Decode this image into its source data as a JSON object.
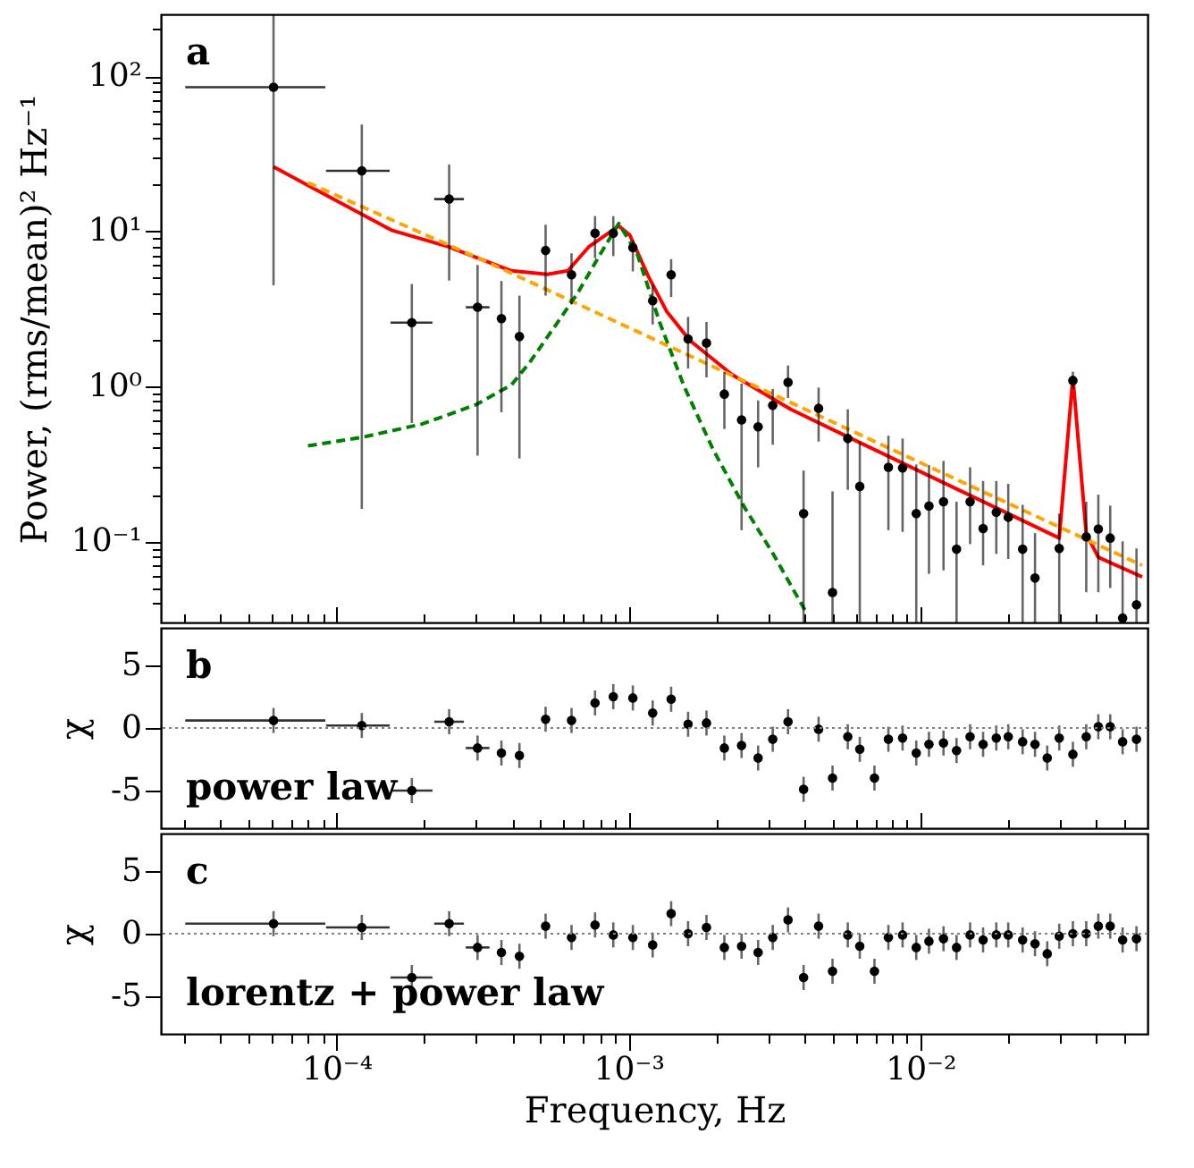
{
  "chart_data": [
    {
      "type": "scatter",
      "ylabel": "Power, (rms/mean)² Hz⁻¹",
      "log": "xy",
      "tick_labels": "y",
      "annotations": [
        "a"
      ],
      "xlim": [
        2.5e-05,
        0.06
      ],
      "ylim": [
        0.03,
        250
      ],
      "xticks": [
        {
          "value": 3e-05,
          "label": null
        },
        {
          "value": 4e-05,
          "label": null
        },
        {
          "value": 5e-05,
          "label": null
        },
        {
          "value": 6e-05,
          "label": null
        },
        {
          "value": 7e-05,
          "label": null
        },
        {
          "value": 8e-05,
          "label": null
        },
        {
          "value": 9e-05,
          "label": null
        },
        {
          "value": 0.0001,
          "label": null
        },
        {
          "value": 0.0002,
          "label": null
        },
        {
          "value": 0.0003,
          "label": null
        },
        {
          "value": 0.0004,
          "label": null
        },
        {
          "value": 0.0005,
          "label": null
        },
        {
          "value": 0.0006,
          "label": null
        },
        {
          "value": 0.0007,
          "label": null
        },
        {
          "value": 0.0008,
          "label": null
        },
        {
          "value": 0.0009,
          "label": null
        },
        {
          "value": 0.001,
          "label": null
        },
        {
          "value": 0.002,
          "label": null
        },
        {
          "value": 0.003,
          "label": null
        },
        {
          "value": 0.004,
          "label": null
        },
        {
          "value": 0.005,
          "label": null
        },
        {
          "value": 0.006,
          "label": null
        },
        {
          "value": 0.007,
          "label": null
        },
        {
          "value": 0.008,
          "label": null
        },
        {
          "value": 0.009,
          "label": null
        },
        {
          "value": 0.01,
          "label": null
        },
        {
          "value": 0.02,
          "label": null
        },
        {
          "value": 0.03,
          "label": null
        },
        {
          "value": 0.04,
          "label": null
        },
        {
          "value": 0.05,
          "label": null
        }
      ],
      "yticks": [
        {
          "value": 0.04,
          "label": null
        },
        {
          "value": 0.05,
          "label": null
        },
        {
          "value": 0.06,
          "label": null
        },
        {
          "value": 0.07,
          "label": null
        },
        {
          "value": 0.08,
          "label": null
        },
        {
          "value": 0.09,
          "label": null
        },
        {
          "value": 0.1,
          "label": "10⁻¹"
        },
        {
          "value": 0.2,
          "label": null
        },
        {
          "value": 0.3,
          "label": null
        },
        {
          "value": 0.4,
          "label": null
        },
        {
          "value": 0.5,
          "label": null
        },
        {
          "value": 0.6,
          "label": null
        },
        {
          "value": 0.7,
          "label": null
        },
        {
          "value": 0.8,
          "label": null
        },
        {
          "value": 0.9,
          "label": null
        },
        {
          "value": 1,
          "label": "10⁰"
        },
        {
          "value": 2,
          "label": null
        },
        {
          "value": 3,
          "label": null
        },
        {
          "value": 4,
          "label": null
        },
        {
          "value": 5,
          "label": null
        },
        {
          "value": 6,
          "label": null
        },
        {
          "value": 7,
          "label": null
        },
        {
          "value": 8,
          "label": null
        },
        {
          "value": 9,
          "label": null
        },
        {
          "value": 10,
          "label": "10¹"
        },
        {
          "value": 20,
          "label": null
        },
        {
          "value": 30,
          "label": null
        },
        {
          "value": 40,
          "label": null
        },
        {
          "value": 50,
          "label": null
        },
        {
          "value": 60,
          "label": null
        },
        {
          "value": 70,
          "label": null
        },
        {
          "value": 80,
          "label": null
        },
        {
          "value": 90,
          "label": null
        },
        {
          "value": 100,
          "label": "10²"
        },
        {
          "value": 200,
          "label": null
        }
      ],
      "series": [
        {
          "type": "line",
          "color": "#ff0000",
          "x": [
            6.08e-05,
            9.3e-05,
            0.000155,
            0.000243,
            0.000397,
            0.000527,
            0.00062,
            0.00073,
            0.000926,
            0.00101,
            0.00117,
            0.00135,
            0.00162,
            0.00226,
            0.0036,
            0.0058,
            0.0299,
            0.0333,
            0.037,
            0.0407,
            0.0575
          ],
          "values": [
            26,
            16.9,
            10.1,
            7.9,
            5.55,
            5.27,
            5.55,
            7.9,
            10.8,
            9.44,
            5.1,
            3.05,
            1.98,
            1.19,
            0.71,
            0.46,
            0.105,
            1.14,
            0.112,
            0.079,
            0.059
          ]
        },
        {
          "type": "line",
          "color": "#ffa500",
          "line_style": "dashed",
          "x": [
            7.98e-05,
            0.000345,
            0.0575
          ],
          "values": [
            20.5,
            6.05,
            0.07
          ]
        },
        {
          "type": "line",
          "color": "#008000",
          "line_style": "dashed",
          "x": [
            7.98e-05,
            0.000123,
            0.000196,
            0.0003,
            0.000397,
            0.000457,
            0.000553,
            0.000667,
            0.000803,
            0.000926,
            0.00107,
            0.00128,
            0.00155,
            0.00195,
            0.0025,
            0.00313,
            0.00405
          ],
          "values": [
            0.413,
            0.47,
            0.57,
            0.76,
            1.02,
            1.41,
            2.36,
            3.94,
            7.18,
            11.2,
            7.18,
            2.57,
            1.0,
            0.39,
            0.165,
            0.083,
            0.0352
          ]
        },
        {
          "type": "scatter",
          "marker": "circle",
          "color": "#000000",
          "x": [
            6.08e-05,
            0.000122,
            0.000181,
            0.000243,
            0.000304,
            0.000367,
            0.000423,
            0.00052,
            0.000638,
            0.000768,
            0.000887,
            0.001035,
            0.00121,
            0.0014,
            0.0016,
            0.00185,
            0.00213,
            0.00244,
            0.00278,
            0.00312,
            0.00352,
            0.00398,
            0.00448,
            0.005,
            0.00564,
            0.0062,
            0.00777,
            0.00869,
            0.00968,
            0.0107,
            0.012,
            0.0133,
            0.0148,
            0.0164,
            0.0182,
            0.02,
            0.0224,
            0.0247,
            0.0299,
            0.0333,
            0.037,
            0.0407,
            0.0447,
            0.0493,
            0.055
          ],
          "values": [
            84.8,
            24.5,
            2.57,
            16.1,
            3.23,
            2.73,
            2.09,
            7.5,
            5.23,
            9.7,
            9.7,
            7.83,
            3.56,
            5.23,
            2.02,
            1.9,
            0.89,
            0.607,
            0.547,
            0.753,
            1.06,
            0.151,
            0.72,
            0.0468,
            0.46,
            0.226,
            0.3,
            0.297,
            0.151,
            0.169,
            0.18,
            0.089,
            0.18,
            0.121,
            0.154,
            0.143,
            0.089,
            0.058,
            0.09,
            1.09,
            0.107,
            0.12,
            0.105,
            0.032,
            0.039
          ],
          "errors": [
            [
              4.48,
              250
            ],
            [
              0.162,
              48.7
            ],
            [
              0.58,
              4.56
            ],
            [
              4.8,
              26.9
            ],
            [
              0.357,
              6.05
            ],
            [
              0.68,
              4.77
            ],
            [
              0.342,
              3.84
            ],
            [
              3.84,
              11.0
            ],
            [
              3.37,
              7.2
            ],
            [
              6.7,
              12.5
            ],
            [
              6.9,
              12.5
            ],
            [
              5.5,
              8.7
            ],
            [
              2.5,
              4.5
            ],
            [
              3.76,
              6.6
            ],
            [
              1.3,
              2.8
            ],
            [
              1.14,
              2.6
            ],
            [
              0.53,
              1.24
            ],
            [
              0.118,
              1.04
            ],
            [
              0.3,
              0.81
            ],
            [
              0.42,
              0.96
            ],
            [
              0.84,
              1.36
            ],
            [
              0.03,
              0.286
            ],
            [
              0.44,
              0.98
            ],
            [
              0.03,
              0.21
            ],
            [
              0.215,
              0.71
            ],
            [
              0.03,
              0.44
            ],
            [
              0.118,
              0.48
            ],
            [
              0.115,
              0.46
            ],
            [
              0.03,
              0.313
            ],
            [
              0.0617,
              0.31
            ],
            [
              0.065,
              0.33
            ],
            [
              0.03,
              0.18
            ],
            [
              0.096,
              0.3
            ],
            [
              0.07,
              0.245
            ],
            [
              0.083,
              0.245
            ],
            [
              0.077,
              0.235
            ],
            [
              0.03,
              0.172
            ],
            [
              0.03,
              0.113
            ],
            [
              0.03,
              0.151
            ],
            [
              0.96,
              1.24
            ],
            [
              0.047,
              0.18
            ],
            [
              0.047,
              0.2
            ],
            [
              0.05,
              0.17
            ],
            [
              0.03,
              0.1
            ],
            [
              0.03,
              0.09
            ]
          ],
          "xerrors": [
            [
              3.03e-05,
              9.15e-05
            ],
            [
              9.2e-05,
              0.000152
            ],
            [
              0.000153,
              0.000213
            ],
            [
              0.000216,
              0.000273
            ],
            [
              0.000277,
              0.000334
            ],
            null,
            null,
            null,
            null,
            null,
            null,
            null,
            null,
            null,
            null,
            null,
            null,
            null,
            null,
            null,
            null,
            null,
            null,
            null,
            null,
            null,
            null,
            null,
            null,
            null,
            null,
            null,
            null,
            null,
            null,
            null,
            null,
            null,
            null,
            null,
            null,
            null,
            null,
            null,
            null
          ]
        }
      ]
    },
    {
      "type": "scatter",
      "ylabel": "χ",
      "log": "x",
      "tick_labels": "y",
      "annotations": [
        "b",
        "power law"
      ],
      "xlim": [
        2.5e-05,
        0.06
      ],
      "ylim": [
        -8,
        8
      ],
      "yticks": [
        -5,
        0,
        5
      ],
      "xticks": [
        {
          "value": 3e-05,
          "label": null
        },
        {
          "value": 4e-05,
          "label": null
        },
        {
          "value": 5e-05,
          "label": null
        },
        {
          "value": 6e-05,
          "label": null
        },
        {
          "value": 7e-05,
          "label": null
        },
        {
          "value": 8e-05,
          "label": null
        },
        {
          "value": 9e-05,
          "label": null
        },
        {
          "value": 0.0001,
          "label": null
        },
        {
          "value": 0.0002,
          "label": null
        },
        {
          "value": 0.0003,
          "label": null
        },
        {
          "value": 0.0004,
          "label": null
        },
        {
          "value": 0.0005,
          "label": null
        },
        {
          "value": 0.0006,
          "label": null
        },
        {
          "value": 0.0007,
          "label": null
        },
        {
          "value": 0.0008,
          "label": null
        },
        {
          "value": 0.0009,
          "label": null
        },
        {
          "value": 0.001,
          "label": null
        },
        {
          "value": 0.002,
          "label": null
        },
        {
          "value": 0.003,
          "label": null
        },
        {
          "value": 0.004,
          "label": null
        },
        {
          "value": 0.005,
          "label": null
        },
        {
          "value": 0.006,
          "label": null
        },
        {
          "value": 0.007,
          "label": null
        },
        {
          "value": 0.008,
          "label": null
        },
        {
          "value": 0.009,
          "label": null
        },
        {
          "value": 0.01,
          "label": null
        },
        {
          "value": 0.02,
          "label": null
        },
        {
          "value": 0.03,
          "label": null
        },
        {
          "value": 0.04,
          "label": null
        },
        {
          "value": 0.05,
          "label": null
        }
      ],
      "ref_lines": [
        {
          "axis": "y",
          "value": 0,
          "line_style": "dotted",
          "color": "#808080"
        }
      ],
      "x": [
        6.08e-05,
        0.000122,
        0.000181,
        0.000243,
        0.000304,
        0.000367,
        0.000423,
        0.00052,
        0.000638,
        0.000768,
        0.000887,
        0.001035,
        0.00121,
        0.0014,
        0.0016,
        0.00185,
        0.00213,
        0.00244,
        0.00278,
        0.00312,
        0.00352,
        0.00398,
        0.00448,
        0.005,
        0.00564,
        0.0062,
        0.00696,
        0.00777,
        0.00869,
        0.00968,
        0.0107,
        0.012,
        0.0133,
        0.0148,
        0.0164,
        0.0182,
        0.02,
        0.0224,
        0.0247,
        0.0272,
        0.0299,
        0.0333,
        0.037,
        0.0407,
        0.0447,
        0.0493,
        0.055
      ],
      "series": [
        {
          "type": "scatter",
          "marker": "circle",
          "color": "#000000",
          "values": [
            0.6,
            0.2,
            -5.0,
            0.5,
            -1.6,
            -2.0,
            -2.2,
            0.7,
            0.6,
            2.0,
            2.5,
            2.4,
            1.2,
            2.3,
            0.3,
            0.4,
            -1.6,
            -1.4,
            -2.4,
            -0.9,
            0.5,
            -4.9,
            -0.1,
            -4.0,
            -0.7,
            -1.7,
            -4.0,
            -0.9,
            -0.8,
            -2.0,
            -1.3,
            -1.2,
            -1.8,
            -0.7,
            -1.3,
            -0.8,
            -0.7,
            -1.1,
            -1.3,
            -2.4,
            -0.8,
            -2.1,
            -0.7,
            0.1,
            0.1,
            -1.1,
            -0.9
          ],
          "errors": [
            1,
            1,
            1,
            1,
            1,
            1,
            1,
            1,
            1,
            1,
            1,
            1,
            1,
            1,
            1,
            1,
            1,
            1,
            1,
            1,
            1,
            1,
            1,
            1,
            1,
            1,
            1,
            1,
            1,
            1,
            1,
            1,
            1,
            1,
            1,
            1,
            1,
            1,
            1,
            1,
            1,
            1,
            1,
            1,
            1,
            1,
            1
          ],
          "xerrors": [
            [
              3.03e-05,
              9.15e-05
            ],
            [
              9.2e-05,
              0.000152
            ],
            [
              0.000153,
              0.000213
            ],
            [
              0.000216,
              0.000273
            ],
            [
              0.000277,
              0.000334
            ],
            null,
            null,
            null,
            null,
            null,
            null,
            null,
            null,
            null,
            null,
            null,
            null,
            null,
            null,
            null,
            null,
            null,
            null,
            null,
            null,
            null,
            null,
            null,
            null,
            null,
            null,
            null,
            null,
            null,
            null,
            null,
            null,
            null,
            null,
            null,
            null,
            null,
            null,
            null,
            null,
            null,
            null
          ]
        }
      ]
    },
    {
      "type": "scatter",
      "xlabel": "Frequency, Hz",
      "ylabel": "χ",
      "log": "x",
      "annotations": [
        "c",
        "lorentz + power law"
      ],
      "xlim": [
        2.5e-05,
        0.06
      ],
      "ylim": [
        -8,
        8
      ],
      "yticks": [
        -5,
        0,
        5
      ],
      "xticks": [
        {
          "value": 3e-05,
          "label": null
        },
        {
          "value": 4e-05,
          "label": null
        },
        {
          "value": 5e-05,
          "label": null
        },
        {
          "value": 6e-05,
          "label": null
        },
        {
          "value": 7e-05,
          "label": null
        },
        {
          "value": 8e-05,
          "label": null
        },
        {
          "value": 9e-05,
          "label": null
        },
        {
          "value": 0.0001,
          "label": "10⁻⁴"
        },
        {
          "value": 0.0002,
          "label": null
        },
        {
          "value": 0.0003,
          "label": null
        },
        {
          "value": 0.0004,
          "label": null
        },
        {
          "value": 0.0005,
          "label": null
        },
        {
          "value": 0.0006,
          "label": null
        },
        {
          "value": 0.0007,
          "label": null
        },
        {
          "value": 0.0008,
          "label": null
        },
        {
          "value": 0.0009,
          "label": null
        },
        {
          "value": 0.001,
          "label": "10⁻³"
        },
        {
          "value": 0.002,
          "label": null
        },
        {
          "value": 0.003,
          "label": null
        },
        {
          "value": 0.004,
          "label": null
        },
        {
          "value": 0.005,
          "label": null
        },
        {
          "value": 0.006,
          "label": null
        },
        {
          "value": 0.007,
          "label": null
        },
        {
          "value": 0.008,
          "label": null
        },
        {
          "value": 0.009,
          "label": null
        },
        {
          "value": 0.01,
          "label": "10⁻²"
        },
        {
          "value": 0.02,
          "label": null
        },
        {
          "value": 0.03,
          "label": null
        },
        {
          "value": 0.04,
          "label": null
        },
        {
          "value": 0.05,
          "label": null
        }
      ],
      "ref_lines": [
        {
          "axis": "y",
          "value": 0,
          "line_style": "dotted",
          "color": "#808080"
        }
      ],
      "x": [
        6.08e-05,
        0.000122,
        0.000181,
        0.000243,
        0.000304,
        0.000367,
        0.000423,
        0.00052,
        0.000638,
        0.000768,
        0.000887,
        0.001035,
        0.00121,
        0.0014,
        0.0016,
        0.00185,
        0.00213,
        0.00244,
        0.00278,
        0.00312,
        0.00352,
        0.00398,
        0.00448,
        0.005,
        0.00564,
        0.0062,
        0.00696,
        0.00777,
        0.00869,
        0.00968,
        0.0107,
        0.012,
        0.0133,
        0.0148,
        0.0164,
        0.0182,
        0.02,
        0.0224,
        0.0247,
        0.0272,
        0.0299,
        0.0333,
        0.037,
        0.0407,
        0.0447,
        0.0493,
        0.055
      ],
      "series": [
        {
          "type": "scatter",
          "marker": "circle",
          "color": "#000000",
          "values": [
            0.8,
            0.5,
            -3.5,
            0.8,
            -1.1,
            -1.5,
            -1.8,
            0.6,
            -0.3,
            0.7,
            -0.1,
            -0.3,
            -0.9,
            1.6,
            0,
            0.5,
            -1.1,
            -1.0,
            -1.5,
            -0.3,
            1.1,
            -3.5,
            0.6,
            -3.0,
            -0.1,
            -1.0,
            -3.0,
            -0.3,
            -0.1,
            -1.1,
            -0.6,
            -0.4,
            -1.1,
            -0.1,
            -0.5,
            -0.1,
            -0.1,
            -0.5,
            -0.8,
            -1.6,
            -0.2,
            0,
            0,
            0.6,
            0.6,
            -0.5,
            -0.4
          ],
          "errors": [
            1,
            1,
            1,
            1,
            1,
            1,
            1,
            1,
            1,
            1,
            1,
            1,
            1,
            1,
            1,
            1,
            1,
            1,
            1,
            1,
            1,
            1,
            1,
            1,
            1,
            1,
            1,
            1,
            1,
            1,
            1,
            1,
            1,
            1,
            1,
            1,
            1,
            1,
            1,
            1,
            1,
            1,
            1,
            1,
            1,
            1,
            1
          ],
          "xerrors": [
            [
              3.03e-05,
              9.15e-05
            ],
            [
              9.2e-05,
              0.000152
            ],
            [
              0.000153,
              0.000213
            ],
            [
              0.000216,
              0.000273
            ],
            [
              0.000277,
              0.000334
            ],
            null,
            null,
            null,
            null,
            null,
            null,
            null,
            null,
            null,
            null,
            null,
            null,
            null,
            null,
            null,
            null,
            null,
            null,
            null,
            null,
            null,
            null,
            null,
            null,
            null,
            null,
            null,
            null,
            null,
            null,
            null,
            null,
            null,
            null,
            null,
            null,
            null,
            null,
            null,
            null,
            null,
            null
          ]
        }
      ]
    }
  ]
}
